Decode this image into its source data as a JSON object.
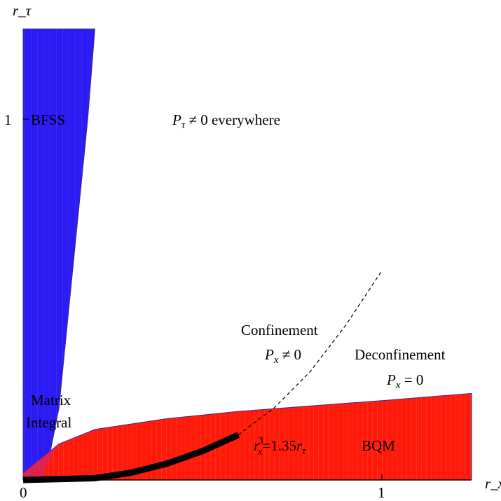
{
  "chart_data": {
    "type": "area",
    "xlabel": "r_x",
    "ylabel": "r_τ",
    "xlim": [
      0,
      1.25
    ],
    "ylim": [
      0,
      1.25
    ],
    "x_ticks": [
      "0",
      "1"
    ],
    "y_ticks": [
      "1"
    ],
    "colors": {
      "bfss": "#2a1cf2",
      "bqm": "#ff1a0a",
      "boundary": "#3a2a8a",
      "curve": "#000000"
    },
    "regions": [
      {
        "name": "BFSS",
        "label": "BFSS",
        "color": "#2a1cf2",
        "left_boundary_x": 0,
        "right_boundary": [
          [
            0.2,
            1.25
          ],
          [
            0.18,
            1.0
          ],
          [
            0.15,
            0.7
          ],
          [
            0.12,
            0.4
          ],
          [
            0.1,
            0.2
          ],
          [
            0.07,
            0.05
          ],
          [
            0.05,
            0
          ]
        ]
      },
      {
        "name": "BQM",
        "label": "BQM",
        "color": "#ff1a0a",
        "upper_boundary": [
          [
            0,
            0.02
          ],
          [
            0.05,
            0.06
          ],
          [
            0.1,
            0.1
          ],
          [
            0.2,
            0.14
          ],
          [
            0.4,
            0.17
          ],
          [
            0.6,
            0.19
          ],
          [
            0.8,
            0.205
          ],
          [
            1.0,
            0.22
          ],
          [
            1.25,
            0.24
          ]
        ]
      }
    ],
    "curves": [
      {
        "name": "solid",
        "style": "thick",
        "points": [
          [
            0,
            0
          ],
          [
            0.2,
            0.005
          ],
          [
            0.3,
            0.02
          ],
          [
            0.4,
            0.045
          ],
          [
            0.5,
            0.08
          ],
          [
            0.6,
            0.125
          ]
        ]
      },
      {
        "name": "dashed",
        "style": "dashed",
        "points": [
          [
            0.6,
            0.125
          ],
          [
            0.7,
            0.2
          ],
          [
            0.8,
            0.3
          ],
          [
            0.9,
            0.43
          ],
          [
            1.0,
            0.58
          ]
        ]
      }
    ],
    "annotations": {
      "bfss": "BFSS",
      "p_tau": "P",
      "p_tau_sub": "τ",
      "p_tau_rest": " ≠ 0 everywhere",
      "confinement": "Confinement",
      "confinement_px": "P",
      "confinement_px_sub": "x",
      "confinement_px_rest": " ≠ 0",
      "deconfinement": "Deconfinement",
      "deconfinement_px": "P",
      "deconfinement_px_sub": "x",
      "deconfinement_px_rest": " = 0",
      "matrix": "Matrix",
      "integral": "Integral",
      "relation_r": "r",
      "relation_sup": "3",
      "relation_sub": "x",
      "relation_rest": "=1.35",
      "relation_r2": "r",
      "relation_tau": "τ",
      "bqm": "BQM"
    }
  }
}
